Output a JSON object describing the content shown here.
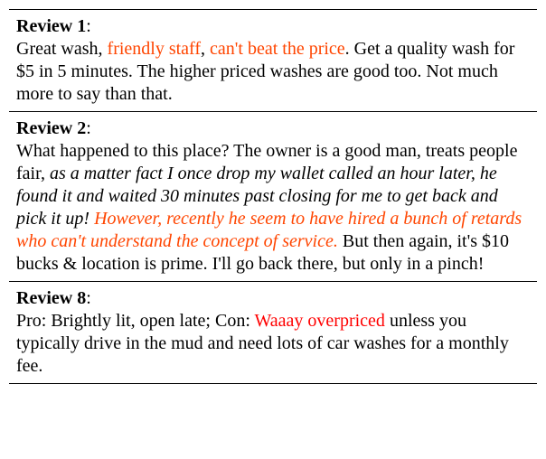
{
  "reviews": [
    {
      "title": "Review 1",
      "segments": [
        {
          "text": "Great wash, ",
          "style": "normal"
        },
        {
          "text": "friendly staff",
          "style": "highlight"
        },
        {
          "text": ", ",
          "style": "normal"
        },
        {
          "text": "can't beat the price",
          "style": "highlight"
        },
        {
          "text": ". Get a quality wash for $5 in 5 minutes. The higher priced washes are good too. Not much more to say than that.",
          "style": "normal"
        }
      ]
    },
    {
      "title": "Review 2",
      "segments": [
        {
          "text": "What happened to this place? The owner is a good man, treats people fair, ",
          "style": "normal"
        },
        {
          "text": "as a matter fact I once drop my wallet called an hour later, he found it and waited 30 minutes past closing for me to get back and pick it up!",
          "style": "italic"
        },
        {
          "text": " ",
          "style": "normal"
        },
        {
          "text": "However, recently he ",
          "style": "highlight-italic"
        },
        {
          "text": "seem",
          "style": "highlight-italic"
        },
        {
          "text": " to have hired a bunch of retards who can't understand the concept of service.",
          "style": "highlight-italic"
        },
        {
          "text": " But then again, it's $10 bucks & location is prime. I'll go back there, but only in a pinch!",
          "style": "normal"
        }
      ]
    },
    {
      "title": "Review 8",
      "segments": [
        {
          "text": "Pro: Brightly lit, open late; Con: ",
          "style": "normal"
        },
        {
          "text": "Waaay overpriced",
          "style": "highlight-red"
        },
        {
          "text": " unless you typically drive in the mud and need lots of car washes for a monthly fee.",
          "style": "normal"
        }
      ]
    }
  ],
  "colors": {
    "highlight": "#ff4500",
    "highlight_red": "#ff0000",
    "text": "#000000",
    "border": "#000000",
    "background": "#ffffff"
  },
  "typography": {
    "font_family": "Times New Roman",
    "font_size": 20,
    "line_height": 1.25
  }
}
